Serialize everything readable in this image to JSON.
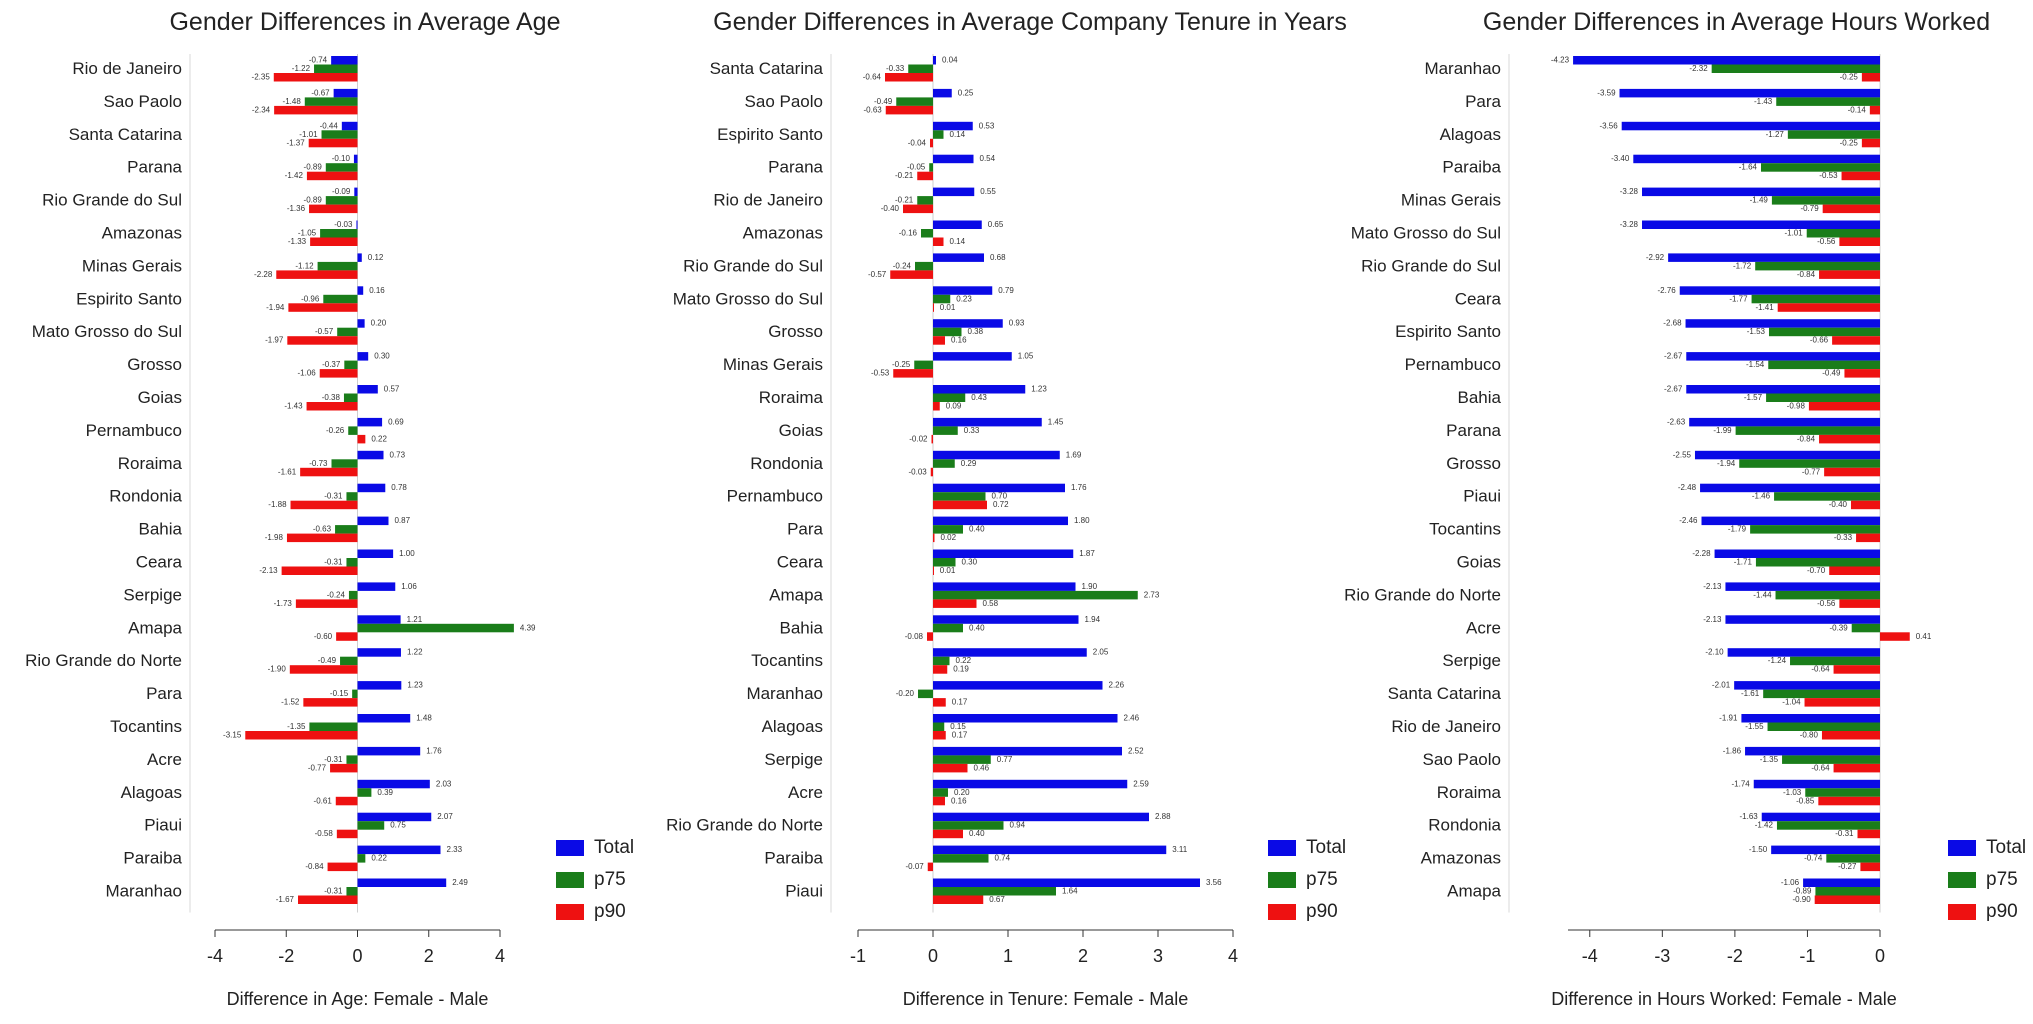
{
  "colors": {
    "total": "#0a0ae6",
    "p75": "#1a7d1a",
    "p90": "#ee1111"
  },
  "legend": {
    "total": "Total",
    "p75": "p75",
    "p90": "p90"
  },
  "chart_data": [
    {
      "type": "bar",
      "orientation": "horizontal",
      "title": "Gender Differences in Average Age",
      "xlabel": "Difference in Age: Female - Male",
      "xlim": [
        -4,
        4
      ],
      "xticks": [
        -4,
        -2,
        0,
        2,
        4
      ],
      "legend_position": "bottom-right",
      "categories": [
        "Rio de Janeiro",
        "Sao Paolo",
        "Santa Catarina",
        "Parana",
        "Rio Grande do Sul",
        "Amazonas",
        "Minas Gerais",
        "Espirito Santo",
        "Mato Grosso do Sul",
        "Grosso",
        "Goias",
        "Pernambuco",
        "Roraima",
        "Rondonia",
        "Bahia",
        "Ceara",
        "Serpige",
        "Amapa",
        "Rio Grande do Norte",
        "Para",
        "Tocantins",
        "Acre",
        "Alagoas",
        "Piaui",
        "Paraiba",
        "Maranhao"
      ],
      "series": [
        {
          "name": "Total",
          "values": [
            -0.74,
            -0.67,
            -0.44,
            -0.1,
            -0.09,
            -0.03,
            0.12,
            0.16,
            0.2,
            0.3,
            0.57,
            0.69,
            0.73,
            0.78,
            0.87,
            1.0,
            1.06,
            1.21,
            1.22,
            1.23,
            1.48,
            1.76,
            2.03,
            2.07,
            2.33,
            2.49
          ],
          "labels": [
            "-0.74",
            "-0.67",
            "-0.44",
            "-0.10",
            "-0.09",
            "-0.03",
            "0.12",
            "0.16",
            "0.20",
            "0.30",
            "0.57",
            "0.69",
            "0.73",
            "0.78",
            "0.87",
            "1.00",
            "1.06",
            "1.21",
            "1.22",
            "1.23",
            "1.48",
            "1.76",
            "2.03",
            "2.07",
            "2.33",
            "2.49"
          ]
        },
        {
          "name": "p75",
          "values": [
            -1.22,
            -1.48,
            -1.01,
            -0.89,
            -0.89,
            -1.05,
            -1.12,
            -0.96,
            -0.57,
            -0.37,
            -0.38,
            -0.26,
            -0.73,
            -0.31,
            -0.63,
            -0.31,
            -0.24,
            4.39,
            -0.49,
            -0.15,
            -1.35,
            -0.31,
            0.39,
            0.75,
            0.22,
            -0.31
          ],
          "labels": [
            "-1.22",
            "-1.48",
            "-1.01",
            "-0.89",
            "-0.89",
            "-1.05",
            "-1.12",
            "-0.96",
            "-0.57",
            "-0.37",
            "-0.38",
            "-0.26",
            "-0.73",
            "-0.31",
            "-0.63",
            "-0.31",
            "-0.24",
            "4.39",
            "-0.49",
            "-0.15",
            "-1.35",
            "-0.31",
            "0.39",
            "0.75",
            "0.22",
            "-0.31"
          ]
        },
        {
          "name": "p90",
          "values": [
            -2.35,
            -2.34,
            -1.37,
            -1.42,
            -1.36,
            -1.33,
            -2.28,
            -1.94,
            -1.97,
            -1.06,
            -1.43,
            0.22,
            -1.61,
            -1.88,
            -1.98,
            -2.13,
            -1.73,
            -0.6,
            -1.9,
            -1.52,
            -3.15,
            -0.77,
            -0.61,
            -0.58,
            -0.84,
            -1.67
          ],
          "labels": [
            "-2.35",
            "-2.34",
            "-1.37",
            "-1.42",
            "-1.36",
            "-1.33",
            "-2.28",
            "-1.94",
            "-1.97",
            "-1.06",
            "-1.43",
            "0.22",
            "-1.61",
            "-1.88",
            "-1.98",
            "-2.13",
            "-1.73",
            "-0.60",
            "-1.90",
            "-1.52",
            "-3.15",
            "-0.77",
            "-0.61",
            "-0.58",
            "-0.84",
            "-1.67"
          ]
        }
      ]
    },
    {
      "type": "bar",
      "orientation": "horizontal",
      "title": "Gender Differences in Average Company Tenure in Years",
      "xlabel": "Difference in Tenure: Female - Male",
      "xlim": [
        -1,
        4
      ],
      "xticks": [
        -1,
        0,
        1,
        2,
        3,
        4
      ],
      "legend_position": "bottom-right",
      "categories": [
        "Santa Catarina",
        "Sao Paolo",
        "Espirito Santo",
        "Parana",
        "Rio de Janeiro",
        "Amazonas",
        "Rio Grande do Sul",
        "Mato Grosso do Sul",
        "Grosso",
        "Minas Gerais",
        "Roraima",
        "Goias",
        "Rondonia",
        "Pernambuco",
        "Para",
        "Ceara",
        "Amapa",
        "Bahia",
        "Tocantins",
        "Maranhao",
        "Alagoas",
        "Serpige",
        "Acre",
        "Rio Grande do Norte",
        "Paraiba",
        "Piaui"
      ],
      "series": [
        {
          "name": "Total",
          "values": [
            0.04,
            0.25,
            0.53,
            0.54,
            0.55,
            0.65,
            0.68,
            0.79,
            0.93,
            1.05,
            1.23,
            1.45,
            1.69,
            1.76,
            1.8,
            1.87,
            1.9,
            1.94,
            2.05,
            2.26,
            2.46,
            2.52,
            2.59,
            2.88,
            3.11,
            3.56
          ],
          "labels": [
            "0.04",
            "0.25",
            "0.53",
            "0.54",
            "0.55",
            "0.65",
            "0.68",
            "0.79",
            "0.93",
            "1.05",
            "1.23",
            "1.45",
            "1.69",
            "1.76",
            "1.80",
            "1.87",
            "1.90",
            "1.94",
            "2.05",
            "2.26",
            "2.46",
            "2.52",
            "2.59",
            "2.88",
            "3.11",
            "3.56"
          ]
        },
        {
          "name": "p75",
          "values": [
            -0.33,
            -0.49,
            0.14,
            -0.05,
            -0.21,
            -0.16,
            -0.24,
            0.23,
            0.38,
            -0.25,
            0.43,
            0.33,
            0.29,
            0.7,
            0.4,
            0.3,
            2.73,
            0.4,
            0.22,
            -0.2,
            0.15,
            0.77,
            0.2,
            0.94,
            0.74,
            1.64
          ],
          "labels": [
            "-0.33",
            "-0.49",
            "0.14",
            "-0.05",
            "-0.21",
            "-0.16",
            "-0.24",
            "0.23",
            "0.38",
            "-0.25",
            "0.43",
            "0.33",
            "0.29",
            "0.70",
            "0.40",
            "0.30",
            "2.73",
            "0.40",
            "0.22",
            "-0.20",
            "0.15",
            "0.77",
            "0.20",
            "0.94",
            "0.74",
            "1.64"
          ]
        },
        {
          "name": "p90",
          "values": [
            -0.64,
            -0.63,
            -0.04,
            -0.21,
            -0.4,
            0.14,
            -0.57,
            0.01,
            0.16,
            -0.53,
            0.09,
            -0.02,
            -0.03,
            0.72,
            0.02,
            0.01,
            0.58,
            -0.08,
            0.19,
            0.17,
            0.17,
            0.46,
            0.16,
            0.4,
            -0.07,
            0.67
          ],
          "labels": [
            "-0.64",
            "-0.63",
            "-0.04",
            "-0.21",
            "-0.40",
            "0.14",
            "-0.57",
            "0.01",
            "0.16",
            "-0.53",
            "0.09",
            "-0.02",
            "-0.03",
            "0.72",
            "0.02",
            "0.01",
            "0.58",
            "-0.08",
            "0.19",
            "0.17",
            "0.17",
            "0.46",
            "0.16",
            "0.40",
            "-0.07",
            "0.67"
          ]
        }
      ]
    },
    {
      "type": "bar",
      "orientation": "horizontal",
      "title": "Gender Differences in Average Hours Worked",
      "xlabel": "Difference in Hours Worked: Female - Male",
      "xlim": [
        -4.3,
        0
      ],
      "xticks": [
        -4,
        -3,
        -2,
        -1,
        0
      ],
      "legend_position": "bottom-right",
      "categories": [
        "Maranhao",
        "Para",
        "Alagoas",
        "Paraiba",
        "Minas Gerais",
        "Mato Grosso do Sul",
        "Rio Grande do Sul",
        "Ceara",
        "Espirito Santo",
        "Pernambuco",
        "Bahia",
        "Parana",
        "Grosso",
        "Piaui",
        "Tocantins",
        "Goias",
        "Rio Grande do Norte",
        "Acre",
        "Serpige",
        "Santa Catarina",
        "Rio de Janeiro",
        "Sao Paolo",
        "Roraima",
        "Rondonia",
        "Amazonas",
        "Amapa"
      ],
      "series": [
        {
          "name": "Total",
          "values": [
            -4.23,
            -3.59,
            -3.56,
            -3.4,
            -3.28,
            -3.28,
            -2.92,
            -2.76,
            -2.68,
            -2.67,
            -2.67,
            -2.63,
            -2.55,
            -2.48,
            -2.46,
            -2.28,
            -2.13,
            -2.13,
            -2.1,
            -2.01,
            -1.91,
            -1.86,
            -1.74,
            -1.63,
            -1.5,
            -1.06
          ],
          "labels": [
            "-4.23",
            "-3.59",
            "-3.56",
            "-3.40",
            "-3.28",
            "-3.28",
            "-2.92",
            "-2.76",
            "-2.68",
            "-2.67",
            "-2.67",
            "-2.63",
            "-2.55",
            "-2.48",
            "-2.46",
            "-2.28",
            "-2.13",
            "-2.13",
            "-2.10",
            "-2.01",
            "-1.91",
            "-1.86",
            "-1.74",
            "-1.63",
            "-1.50",
            "-1.06"
          ]
        },
        {
          "name": "p75",
          "values": [
            -2.32,
            -1.43,
            -1.27,
            -1.64,
            -1.49,
            -1.01,
            -1.72,
            -1.77,
            -1.53,
            -1.54,
            -1.57,
            -1.99,
            -1.94,
            -1.46,
            -1.79,
            -1.71,
            -1.44,
            -0.39,
            -1.24,
            -1.61,
            -1.55,
            -1.35,
            -1.03,
            -1.42,
            -0.74,
            -0.89
          ],
          "labels": [
            "-2.32",
            "-1.43",
            "-1.27",
            "-1.64",
            "-1.49",
            "-1.01",
            "-1.72",
            "-1.77",
            "-1.53",
            "-1.54",
            "-1.57",
            "-1.99",
            "-1.94",
            "-1.46",
            "-1.79",
            "-1.71",
            "-1.44",
            "-0.39",
            "-1.24",
            "-1.61",
            "-1.55",
            "-1.35",
            "-1.03",
            "-1.42",
            "-0.74",
            "-0.89"
          ]
        },
        {
          "name": "p90",
          "values": [
            -0.25,
            -0.14,
            -0.25,
            -0.53,
            -0.79,
            -0.56,
            -0.84,
            -1.41,
            -0.66,
            -0.49,
            -0.98,
            -0.84,
            -0.77,
            -0.4,
            -0.33,
            -0.7,
            -0.56,
            0.41,
            -0.64,
            -1.04,
            -0.8,
            -0.64,
            -0.85,
            -0.31,
            -0.27,
            -0.9
          ],
          "labels": [
            "-0.25",
            "-0.14",
            "-0.25",
            "-0.53",
            "-0.79",
            "-0.56",
            "-0.84",
            "-1.41",
            "-0.66",
            "-0.49",
            "-0.98",
            "-0.84",
            "-0.77",
            "-0.40",
            "-0.33",
            "-0.70",
            "-0.56",
            "0.41",
            "-0.64",
            "-1.04",
            "-0.80",
            "-0.64",
            "-0.85",
            "-0.31",
            "-0.27",
            "-0.90"
          ]
        }
      ]
    }
  ]
}
